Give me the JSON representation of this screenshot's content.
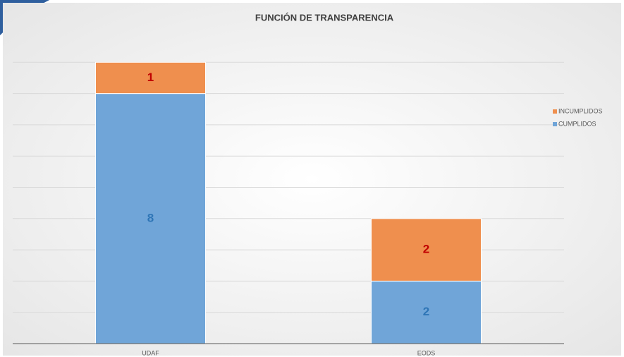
{
  "chart_data": {
    "type": "stacked_bar",
    "title": "FUNCIÓN DE TRANSPARENCIA",
    "categories": [
      "UDAF",
      "EODS"
    ],
    "series": [
      {
        "name": "CUMPLIDOS",
        "color": "#70a5d8",
        "label_color": "#2e75b6",
        "values": [
          8,
          2
        ]
      },
      {
        "name": "INCUMPLIDOS",
        "color": "#ef8f4e",
        "label_color": "#c00000",
        "values": [
          1,
          2
        ]
      }
    ],
    "ylim": [
      0,
      10
    ],
    "yticks": [
      0,
      1,
      2,
      3,
      4,
      5,
      6,
      7,
      8,
      9
    ],
    "grid": true,
    "legend": "right"
  }
}
